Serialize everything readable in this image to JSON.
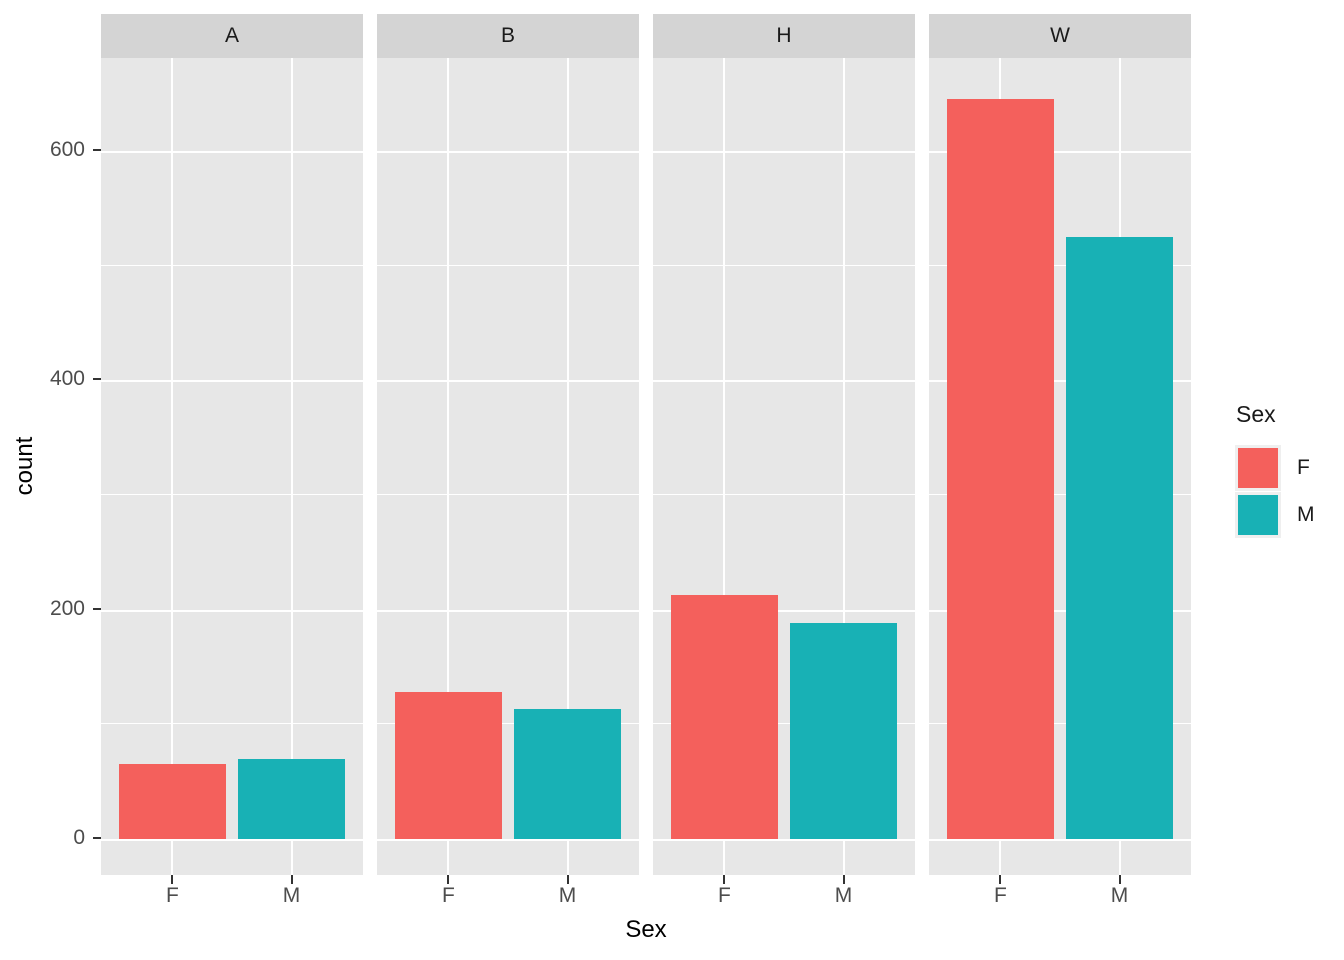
{
  "chart_data": {
    "type": "bar",
    "title": "",
    "xlabel": "Sex",
    "ylabel": "count",
    "categories": [
      "F",
      "M"
    ],
    "facets": [
      {
        "label": "A",
        "values": [
          65,
          70
        ]
      },
      {
        "label": "B",
        "values": [
          128,
          113
        ]
      },
      {
        "label": "H",
        "values": [
          213,
          188
        ]
      },
      {
        "label": "W",
        "values": [
          645,
          525
        ]
      }
    ],
    "series": [
      {
        "name": "F",
        "color": "#F4605C"
      },
      {
        "name": "M",
        "color": "#18B1B5"
      }
    ],
    "y_axis": {
      "major_ticks": [
        0,
        200,
        400,
        600
      ],
      "minor_gridlines": [
        100,
        300,
        500
      ],
      "ylim": [
        -32,
        677
      ]
    },
    "legend": {
      "title": "Sex",
      "position": "right",
      "entries": [
        {
          "label": "F",
          "color": "#F4605C"
        },
        {
          "label": "M",
          "color": "#18B1B5"
        }
      ]
    },
    "layout_hints": {
      "grid": "white major+minor on gray panel",
      "panel_bg": "#E7E7E7",
      "strip_bg": "#D4D4D4",
      "gridline_color": "#FFFFFF",
      "axis_text_color": "#4D4D4D",
      "tick_mark_color": "#333333",
      "legend_key_bg": "#EFEFEF"
    }
  }
}
